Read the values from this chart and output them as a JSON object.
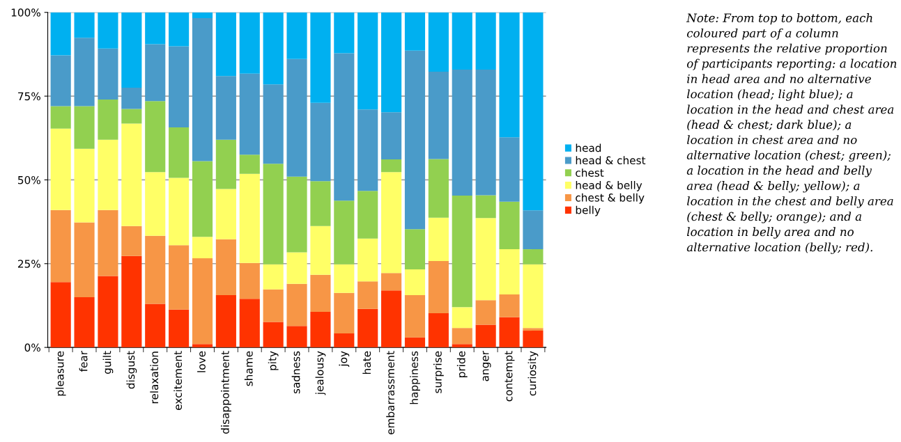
{
  "chart_data": {
    "type": "bar",
    "stacked": true,
    "categories": [
      "pleasure",
      "fear",
      "guilt",
      "disgust",
      "relaxation",
      "excitement",
      "love",
      "disappointment",
      "shame",
      "pity",
      "sadness",
      "jealousy",
      "joy",
      "hate",
      "embarrassment",
      "happiness",
      "surprise",
      "pride",
      "anger",
      "contempt",
      "curiosity"
    ],
    "series": [
      {
        "name": "belly",
        "color": "#ff3300",
        "values": [
          19.5,
          15,
          21.3,
          27.3,
          13,
          11.3,
          1,
          15.6,
          14.5,
          7.6,
          6.4,
          10.6,
          4.2,
          11.5,
          17,
          3,
          10.2,
          1,
          6.8,
          9,
          5
        ]
      },
      {
        "name": "chest & belly",
        "color": "#f79646",
        "values": [
          21.5,
          22.3,
          19.7,
          8.9,
          20.3,
          19.2,
          25.6,
          16.7,
          10.7,
          9.7,
          12.6,
          11.1,
          12.1,
          8.2,
          5.2,
          12.6,
          15.6,
          4.8,
          7.3,
          6.8,
          0.8
        ]
      },
      {
        "name": "head & belly",
        "color": "#ffff66",
        "values": [
          24.3,
          22,
          21,
          30.6,
          19,
          20.1,
          6.4,
          15,
          26.6,
          7.5,
          9.4,
          14.5,
          8.5,
          12.8,
          30.1,
          7.7,
          12.9,
          6.2,
          24.5,
          13.5,
          19
        ]
      },
      {
        "name": "chest",
        "color": "#92d050",
        "values": [
          6.7,
          12.7,
          12,
          4.4,
          21.2,
          15.1,
          22.6,
          14.7,
          5.7,
          30,
          22.6,
          13.4,
          19,
          14.2,
          3.8,
          12,
          17.5,
          33.3,
          6.8,
          14.2,
          4.5
        ]
      },
      {
        "name": "head & chest",
        "color": "#4a9bc9",
        "values": [
          15.2,
          20.4,
          15.2,
          6.3,
          17,
          24.2,
          42.7,
          19,
          24.2,
          23.7,
          35.1,
          23.4,
          44,
          24.3,
          14.1,
          53.3,
          26.1,
          37.6,
          37.5,
          19.2,
          11.6
        ]
      },
      {
        "name": "head",
        "color": "#00b0f0",
        "values": [
          12.8,
          7.6,
          10.8,
          22.5,
          9.5,
          10.1,
          1.7,
          19,
          18.3,
          21.5,
          13.9,
          27,
          12.2,
          29,
          29.8,
          11.4,
          17.7,
          17.1,
          17.1,
          37.3,
          59.1
        ]
      }
    ],
    "ylim": [
      0,
      100
    ],
    "yticks": [
      {
        "value": 0,
        "label": "0%"
      },
      {
        "value": 25,
        "label": "25%"
      },
      {
        "value": 50,
        "label": "50%"
      },
      {
        "value": 75,
        "label": "75%"
      },
      {
        "value": 100,
        "label": "100%"
      }
    ],
    "grid": "y",
    "legend": "right",
    "annotations": [
      "Note: From top to bottom, each coloured part of a column represents the relative proportion of participants reporting: a location in head area and no alternative location (head; light blue); a location in the head and chest area (head & chest; dark blue); a location in chest area and no alternative location (chest; green); a location in the head and belly area (head & belly; yellow); a location in the chest and belly area (chest & belly; orange); and a location in belly area and no alternative location (belly; red)."
    ]
  }
}
